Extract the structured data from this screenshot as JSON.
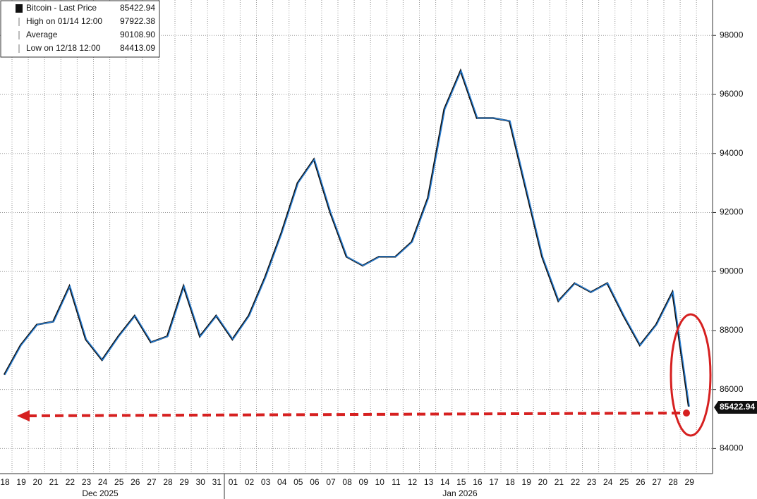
{
  "chart_data": {
    "type": "line",
    "legend_entries": [
      {
        "label": "Bitcoin - Last Price",
        "value": "85422.94"
      },
      {
        "label": "High on 01/14 12:00",
        "value": "97922.38"
      },
      {
        "label": "Average",
        "value": "90108.90"
      },
      {
        "label": "Low on 12/18 12:00",
        "value": "84413.09"
      }
    ],
    "x_group_labels": [
      "Dec 2025",
      "Jan 2026"
    ],
    "categories": [
      "18",
      "19",
      "20",
      "21",
      "22",
      "23",
      "24",
      "25",
      "26",
      "27",
      "28",
      "29",
      "30",
      "31",
      "01",
      "02",
      "03",
      "04",
      "05",
      "06",
      "07",
      "08",
      "09",
      "10",
      "11",
      "12",
      "13",
      "14",
      "15",
      "16",
      "17",
      "18",
      "19",
      "20",
      "21",
      "22",
      "23",
      "24",
      "25",
      "26",
      "27",
      "28",
      "29"
    ],
    "series": [
      {
        "name": "Bitcoin - Last Price",
        "color": "#2a7fd4",
        "values": [
          86500,
          87500,
          88200,
          88300,
          89500,
          87700,
          87000,
          87800,
          88500,
          87600,
          87800,
          89500,
          87800,
          88500,
          87700,
          88500,
          89800,
          91300,
          93000,
          93800,
          92000,
          90500,
          90200,
          90500,
          90500,
          91000,
          92500,
          95500,
          96800,
          95200,
          95200,
          95100,
          92800,
          90500,
          89000,
          89600,
          89300,
          89600,
          88500,
          87500,
          88200,
          89300,
          85422.94
        ]
      }
    ],
    "ylim": [
      83150,
      99200
    ],
    "yticks": [
      84000,
      86000,
      88000,
      90000,
      92000,
      94000,
      96000,
      98000
    ],
    "grid": true
  }
}
